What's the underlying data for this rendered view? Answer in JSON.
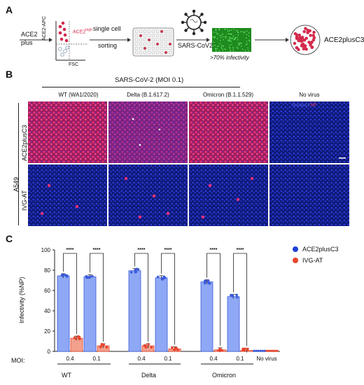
{
  "panel_labels": {
    "a": "A",
    "b": "B",
    "c": "C"
  },
  "panel_a": {
    "ace2_label": "ACE2",
    "plus_label": "plus",
    "y_axis_label": "ACE2-APC",
    "x_axis_label": "FSC",
    "gate_label": "ACE2",
    "gate_superscript": "high",
    "sorting_line1": "single cell",
    "sorting_line2": "sorting",
    "virus_label": "SARS-CoV2",
    "infectivity_label": ">70% infectivity",
    "result_label": "ACE2plusC3"
  },
  "panel_b": {
    "header": "SARS-CoV-2 (MOI 0.1)",
    "columns": [
      "WT (WA1/2020)",
      "Delta (B.1.617.2)",
      "Omicron (B.1.1.529)",
      "No virus"
    ],
    "cell_line": "A549",
    "rows": [
      "ACE2plusC3",
      "IVG-AT"
    ],
    "legend_nucleus": "Nucleus",
    "legend_sep": " / ",
    "legend_np": "NP",
    "colors": {
      "nucleus": "#2a35d8",
      "np": "#e0245a"
    }
  },
  "panel_c": {
    "moi_label": "MOI:",
    "groups": [
      "WT",
      "Delta",
      "Omicron"
    ],
    "sig": "****"
  },
  "chart_data": {
    "type": "bar",
    "ylabel": "Infectivity (%NP)",
    "ylim": [
      0,
      100
    ],
    "yticks": [
      "0",
      "20",
      "40",
      "60",
      "80",
      "100"
    ],
    "categories": [
      "0.4",
      "0.1",
      "0.4",
      "0.1",
      "0.4",
      "0.1",
      "No virus"
    ],
    "series": [
      {
        "name": "ACE2plusC3",
        "color": "#3b5bdb",
        "fill": "#8fa8f5",
        "values": [
          74.5,
          73.5,
          79.5,
          72.5,
          68.5,
          54,
          0.5
        ]
      },
      {
        "name": "IVG-AT",
        "color": "#e8452c",
        "fill": "#f3a08d",
        "values": [
          13,
          5.5,
          5.5,
          2.5,
          1.5,
          1,
          0.5
        ]
      }
    ]
  }
}
